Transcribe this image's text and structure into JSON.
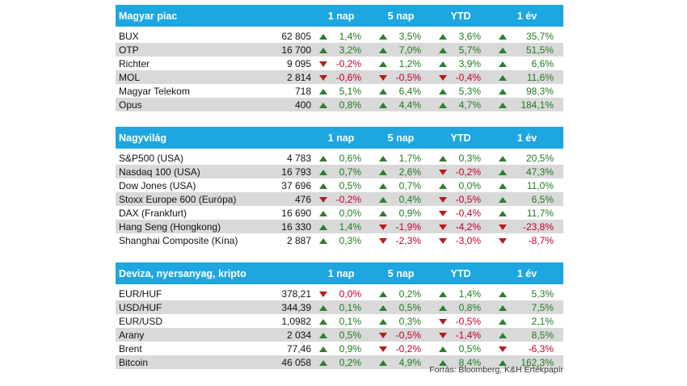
{
  "headers": {
    "d1": "1 nap",
    "d5": "5 nap",
    "ytd": "YTD",
    "y1": "1 év"
  },
  "sections": [
    {
      "title": "Magyar piac",
      "rows": [
        {
          "name": "BUX",
          "value": "62 805",
          "d1": "1,4%",
          "d5": "3,5%",
          "ytd": "3,6%",
          "y1": "35,7%",
          "dir": [
            "up",
            "up",
            "up",
            "up"
          ]
        },
        {
          "name": "OTP",
          "value": "16 700",
          "d1": "3,2%",
          "d5": "7,0%",
          "ytd": "5,7%",
          "y1": "51,5%",
          "dir": [
            "up",
            "up",
            "up",
            "up"
          ]
        },
        {
          "name": "Richter",
          "value": "9 095",
          "d1": "-0,2%",
          "d5": "1,2%",
          "ytd": "3,9%",
          "y1": "6,6%",
          "dir": [
            "down",
            "up",
            "up",
            "up"
          ]
        },
        {
          "name": "MOL",
          "value": "2 814",
          "d1": "-0,6%",
          "d5": "-0,5%",
          "ytd": "-0,4%",
          "y1": "11,6%",
          "dir": [
            "down",
            "down",
            "down",
            "up"
          ]
        },
        {
          "name": "Magyar Telekom",
          "value": "718",
          "d1": "5,1%",
          "d5": "6,4%",
          "ytd": "5,3%",
          "y1": "98,3%",
          "dir": [
            "up",
            "up",
            "up",
            "up"
          ]
        },
        {
          "name": "Opus",
          "value": "400",
          "d1": "0,8%",
          "d5": "4,4%",
          "ytd": "4,7%",
          "y1": "184,1%",
          "dir": [
            "up",
            "up",
            "up",
            "up"
          ]
        }
      ]
    },
    {
      "title": "Nagyvilág",
      "rows": [
        {
          "name": "S&P500 (USA)",
          "value": "4 783",
          "d1": "0,6%",
          "d5": "1,7%",
          "ytd": "0,3%",
          "y1": "20,5%",
          "dir": [
            "up",
            "up",
            "up",
            "up"
          ]
        },
        {
          "name": "Nasdaq 100 (USA)",
          "value": "16 793",
          "d1": "0,7%",
          "d5": "2,6%",
          "ytd": "-0,2%",
          "y1": "47,3%",
          "dir": [
            "up",
            "up",
            "down",
            "up"
          ]
        },
        {
          "name": "Dow Jones (USA)",
          "value": "37 696",
          "d1": "0,5%",
          "d5": "0,7%",
          "ytd": "0,0%",
          "y1": "11,0%",
          "dir": [
            "up",
            "up",
            "up",
            "up"
          ]
        },
        {
          "name": "Stoxx Europe 600 (Európa)",
          "value": "476",
          "d1": "-0,2%",
          "d5": "0,4%",
          "ytd": "-0,5%",
          "y1": "6,5%",
          "dir": [
            "down",
            "up",
            "down",
            "up"
          ]
        },
        {
          "name": "DAX (Frankfurt)",
          "value": "16 690",
          "d1": "0,0%",
          "d5": "0,9%",
          "ytd": "-0,4%",
          "y1": "11,7%",
          "dir": [
            "up",
            "up",
            "down",
            "up"
          ]
        },
        {
          "name": "Hang Seng (Hongkong)",
          "value": "16 330",
          "d1": "1,4%",
          "d5": "-1,9%",
          "ytd": "-4,2%",
          "y1": "-23,8%",
          "dir": [
            "up",
            "down",
            "down",
            "down"
          ]
        },
        {
          "name": "Shanghai Composite (Kína)",
          "value": "2 887",
          "d1": "0,3%",
          "d5": "-2,3%",
          "ytd": "-3,0%",
          "y1": "-8,7%",
          "dir": [
            "up",
            "down",
            "down",
            "down"
          ]
        }
      ]
    },
    {
      "title": "Deviza, nyersanyag, kripto",
      "rows": [
        {
          "name": "EUR/HUF",
          "value": "378,21",
          "d1": "0,0%",
          "d5": "0,2%",
          "ytd": "1,4%",
          "y1": "5,3%",
          "dir": [
            "down",
            "up",
            "up",
            "up"
          ]
        },
        {
          "name": "USD/HUF",
          "value": "344,39",
          "d1": "0,1%",
          "d5": "0,5%",
          "ytd": "0,8%",
          "y1": "7,5%",
          "dir": [
            "up",
            "up",
            "up",
            "up"
          ]
        },
        {
          "name": "EUR/USD",
          "value": "1,0982",
          "d1": "0,1%",
          "d5": "0,3%",
          "ytd": "-0,5%",
          "y1": "2,1%",
          "dir": [
            "up",
            "up",
            "down",
            "up"
          ]
        },
        {
          "name": "Arany",
          "value": "2 034",
          "d1": "0,5%",
          "d5": "-0,5%",
          "ytd": "-1,4%",
          "y1": "8,5%",
          "dir": [
            "up",
            "down",
            "down",
            "up"
          ]
        },
        {
          "name": "Brent",
          "value": "77,46",
          "d1": "0,9%",
          "d5": "-0,2%",
          "ytd": "0,5%",
          "y1": "-6,3%",
          "dir": [
            "up",
            "down",
            "up",
            "down"
          ]
        },
        {
          "name": "Bitcoin",
          "value": "46 058",
          "d1": "0,2%",
          "d5": "4,9%",
          "ytd": "8,4%",
          "y1": "162,3%",
          "dir": [
            "up",
            "up",
            "up",
            "up"
          ]
        }
      ]
    }
  ],
  "source": "Forrás: Bloomberg, K&H Értékpapír",
  "colors": {
    "header_bg": "#1ea6e0",
    "stripe": "#d9d9d9",
    "up": "#2e7d32",
    "down": "#b71c1c"
  }
}
